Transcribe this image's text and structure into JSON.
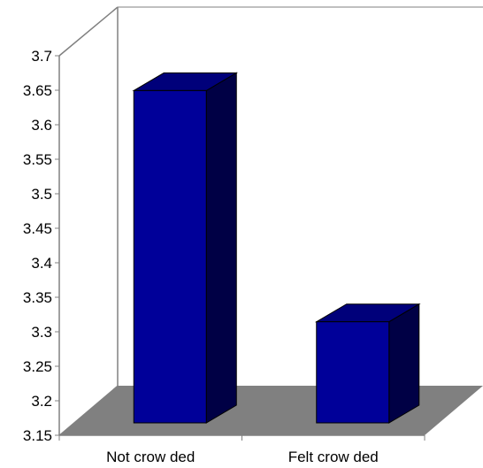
{
  "chart_data": {
    "type": "bar",
    "title": "",
    "xlabel": "",
    "ylabel": "",
    "categories": [
      "Not crow ded",
      "Felt crow ded"
    ],
    "values": [
      3.67,
      3.335
    ],
    "ylim": [
      3.15,
      3.7
    ],
    "y_ticks": [
      "3.15",
      "3.2",
      "3.25",
      "3.3",
      "3.35",
      "3.4",
      "3.45",
      "3.5",
      "3.55",
      "3.6",
      "3.65",
      "3.7"
    ],
    "three_d": true,
    "grid": false,
    "legend": "none",
    "colors": {
      "bar_front": "#000099",
      "bar_top": "#00007a",
      "bar_side": "#000045",
      "floor": "#808080",
      "axis": "#808080"
    }
  }
}
